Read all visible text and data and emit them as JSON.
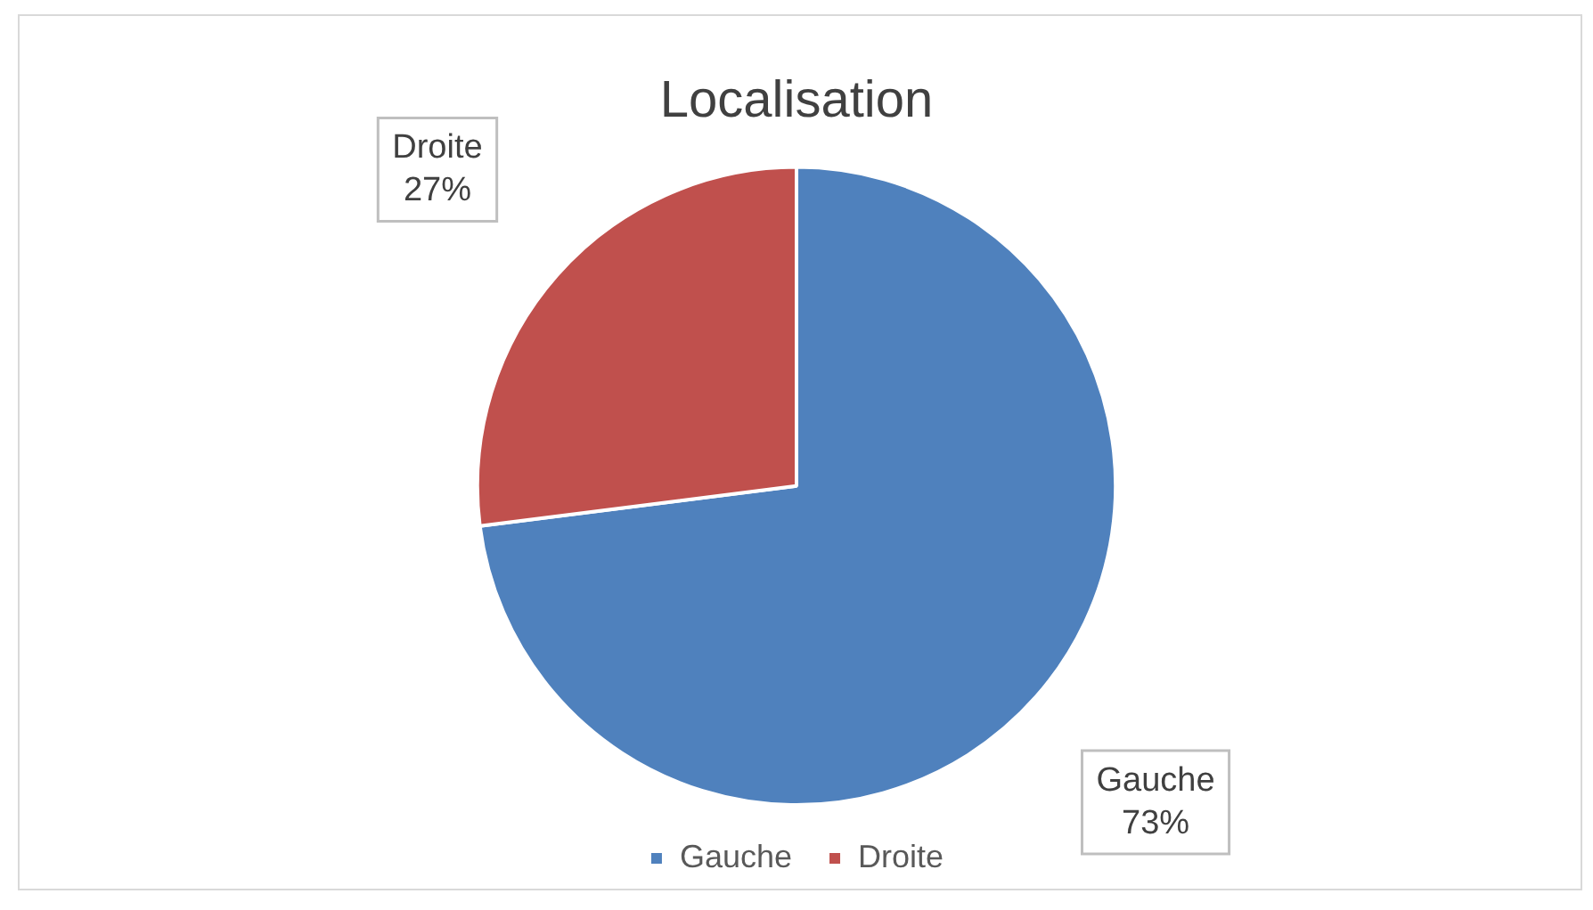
{
  "chart_data": {
    "type": "pie",
    "title": "Localisation",
    "categories": [
      "Gauche",
      "Droite"
    ],
    "values": [
      73,
      27
    ],
    "colors": [
      "#4f81bd",
      "#c0504d"
    ],
    "value_labels": [
      "73%",
      "27%"
    ],
    "legend": "bottom"
  }
}
